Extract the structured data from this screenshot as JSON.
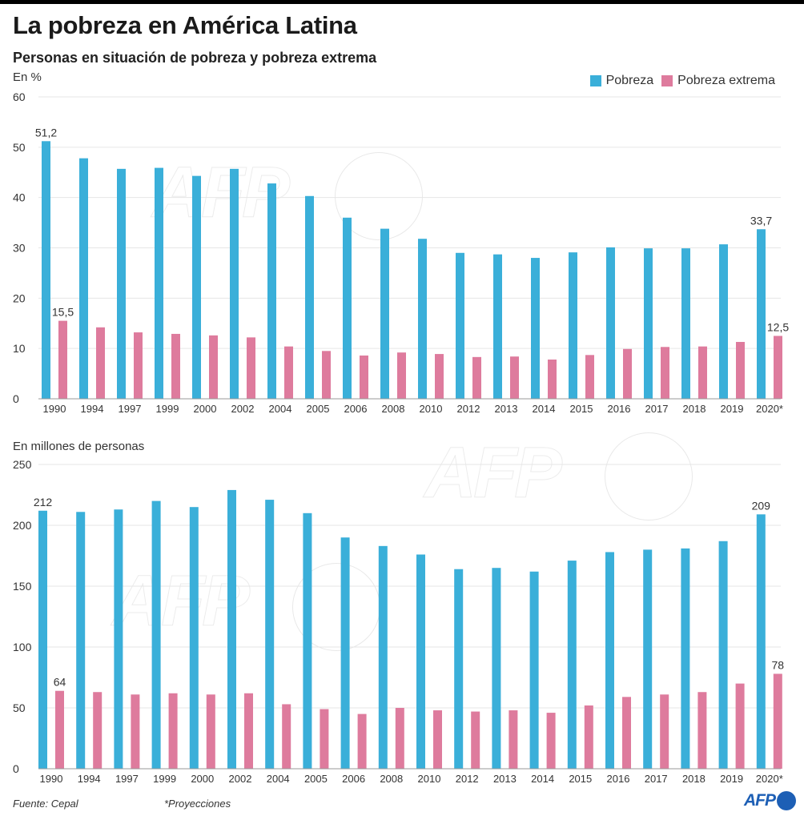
{
  "header": {
    "title": "La pobreza en América Latina",
    "subtitle": "Personas en situación de pobreza y pobreza extrema"
  },
  "legend": {
    "items": [
      {
        "label": "Pobreza",
        "color": "#3aafd9"
      },
      {
        "label": "Pobreza extrema",
        "color": "#de7b9d"
      }
    ]
  },
  "footer": {
    "source": "Fuente: Cepal",
    "note": "*Proyecciones",
    "logo_text": "AFP"
  },
  "watermark": "AFP",
  "chart_data": [
    {
      "type": "bar",
      "title": "Personas en situación de pobreza y pobreza extrema",
      "ylabel": "En %",
      "xlabel": "",
      "ylim": [
        0,
        60
      ],
      "yticks": [
        0,
        10,
        20,
        30,
        40,
        50,
        60
      ],
      "grid": true,
      "legend": "top-right",
      "categories": [
        "1990",
        "1994",
        "1997",
        "1999",
        "2000",
        "2002",
        "2004",
        "2005",
        "2006",
        "2008",
        "2010",
        "2012",
        "2013",
        "2014",
        "2015",
        "2016",
        "2017",
        "2018",
        "2019",
        "2020*"
      ],
      "series": [
        {
          "name": "Pobreza",
          "color": "#3aafd9",
          "values": [
            51.2,
            47.8,
            45.7,
            45.9,
            44.3,
            45.7,
            42.8,
            40.3,
            36.0,
            33.8,
            31.8,
            29.0,
            28.7,
            28.0,
            29.1,
            30.1,
            29.9,
            29.9,
            30.7,
            33.7
          ],
          "labels": {
            "0": "51,2",
            "19": "33,7"
          }
        },
        {
          "name": "Pobreza extrema",
          "color": "#de7b9d",
          "values": [
            15.5,
            14.2,
            13.2,
            12.9,
            12.6,
            12.2,
            10.4,
            9.5,
            8.6,
            9.2,
            8.9,
            8.3,
            8.4,
            7.8,
            8.7,
            9.9,
            10.3,
            10.4,
            11.3,
            12.5
          ],
          "labels": {
            "0": "15,5",
            "19": "12,5"
          }
        }
      ]
    },
    {
      "type": "bar",
      "title": "",
      "ylabel": "En millones de personas",
      "xlabel": "",
      "ylim": [
        0,
        250
      ],
      "yticks": [
        0,
        50,
        100,
        150,
        200,
        250
      ],
      "grid": true,
      "legend": "none",
      "categories": [
        "1990",
        "1994",
        "1997",
        "1999",
        "2000",
        "2002",
        "2004",
        "2005",
        "2006",
        "2008",
        "2010",
        "2012",
        "2013",
        "2014",
        "2015",
        "2016",
        "2017",
        "2018",
        "2019",
        "2020*"
      ],
      "series": [
        {
          "name": "Pobreza",
          "color": "#3aafd9",
          "values": [
            212,
            211,
            213,
            220,
            215,
            229,
            221,
            210,
            190,
            183,
            176,
            164,
            165,
            162,
            171,
            178,
            180,
            181,
            187,
            209
          ],
          "labels": {
            "0": "212",
            "19": "209"
          }
        },
        {
          "name": "Pobreza extrema",
          "color": "#de7b9d",
          "values": [
            64,
            63,
            61,
            62,
            61,
            62,
            53,
            49,
            45,
            50,
            48,
            47,
            48,
            46,
            52,
            59,
            61,
            63,
            70,
            78
          ],
          "labels": {
            "0": "64",
            "19": "78"
          }
        }
      ]
    }
  ]
}
